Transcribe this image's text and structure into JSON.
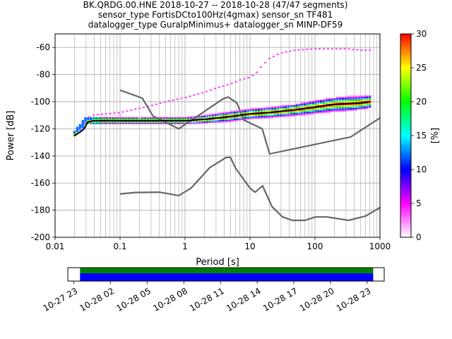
{
  "title": {
    "line1": "BK.QRDG.00.HNE   2018-10-27 -- 2018-10-28  (47/47 segments)",
    "line2": "sensor_type FortisDCto100Hz(4gmax) sensor_sn TF481",
    "line3": "datalogger_type GuralpMinimus+ datalogger_sn MINP-DF59"
  },
  "chart_data": {
    "type": "heatmap",
    "xlabel": "Period [s]",
    "ylabel": "Power [dB]",
    "x_scale": "log",
    "xlim": [
      0.01,
      1000
    ],
    "ylim": [
      -200,
      -50
    ],
    "x_ticks": [
      "0.01",
      "0.1",
      "1",
      "10",
      "100",
      "1000"
    ],
    "y_ticks": [
      "-200",
      "-180",
      "-160",
      "-140",
      "-120",
      "-100",
      "-80",
      "-60"
    ],
    "grid": true,
    "colorbar": {
      "label": "[%]",
      "range": [
        0,
        30
      ],
      "ticks": [
        "0",
        "5",
        "10",
        "15",
        "20",
        "25",
        "30"
      ],
      "colormap": "pqlx",
      "stops": [
        "#ffffff",
        "#ff00ff",
        "#0000ff",
        "#00ffff",
        "#00ff00",
        "#ffff00",
        "#ff0000"
      ]
    },
    "mode_curve": {
      "name": "mode",
      "color": "#000000",
      "points": [
        [
          0.02,
          -125
        ],
        [
          0.025,
          -122
        ],
        [
          0.028,
          -120
        ],
        [
          0.032,
          -115
        ],
        [
          0.04,
          -114
        ],
        [
          0.1,
          -114
        ],
        [
          0.5,
          -114
        ],
        [
          1,
          -114
        ],
        [
          2,
          -113
        ],
        [
          5,
          -111
        ],
        [
          10,
          -109
        ],
        [
          20,
          -108
        ],
        [
          50,
          -106
        ],
        [
          100,
          -104
        ],
        [
          200,
          -102
        ],
        [
          500,
          -101
        ],
        [
          700,
          -100
        ]
      ]
    },
    "heat_band": {
      "description_free": true,
      "core": [
        [
          0.02,
          -125,
          -122
        ],
        [
          0.03,
          -116,
          -112
        ],
        [
          0.1,
          -116,
          -112
        ],
        [
          1,
          -116,
          -112
        ],
        [
          5,
          -114,
          -108
        ],
        [
          10,
          -112,
          -106
        ],
        [
          50,
          -110,
          -103
        ],
        [
          100,
          -108,
          -100
        ],
        [
          300,
          -106,
          -97
        ],
        [
          700,
          -104,
          -96
        ]
      ],
      "upper_outliers": [
        [
          0.025,
          -120
        ],
        [
          0.035,
          -110
        ],
        [
          0.1,
          -108
        ],
        [
          0.3,
          -103
        ],
        [
          0.5,
          -100
        ],
        [
          1,
          -97
        ],
        [
          2,
          -93
        ],
        [
          3,
          -90
        ],
        [
          5,
          -87
        ],
        [
          7,
          -84
        ],
        [
          10,
          -82
        ],
        [
          13,
          -78
        ],
        [
          15,
          -74
        ],
        [
          20,
          -68
        ],
        [
          30,
          -64
        ],
        [
          50,
          -62
        ],
        [
          100,
          -61
        ],
        [
          200,
          -61
        ],
        [
          300,
          -61
        ],
        [
          500,
          -62
        ],
        [
          700,
          -62
        ]
      ],
      "scatter_hi_freq": [
        [
          0.1,
          -110
        ],
        [
          0.2,
          -112
        ],
        [
          0.5,
          -113
        ]
      ]
    },
    "nlnm": {
      "name": "NLNM",
      "color": "#666666",
      "points": [
        [
          0.1,
          -168
        ],
        [
          0.17,
          -167
        ],
        [
          0.4,
          -166.7
        ],
        [
          0.8,
          -169.2
        ],
        [
          1.24,
          -163.7
        ],
        [
          2.4,
          -148.6
        ],
        [
          4.3,
          -141.1
        ],
        [
          5,
          -141.1
        ],
        [
          6,
          -149
        ],
        [
          10,
          -163.8
        ],
        [
          12,
          -166.7
        ],
        [
          15.6,
          -162.1
        ],
        [
          21.9,
          -177.5
        ],
        [
          31.6,
          -185
        ],
        [
          45,
          -187.5
        ],
        [
          70,
          -187.5
        ],
        [
          101,
          -185
        ],
        [
          154,
          -185
        ],
        [
          328,
          -187.5
        ],
        [
          600,
          -184.4
        ],
        [
          1000,
          -178
        ]
      ]
    },
    "nhnm": {
      "name": "NHNM",
      "color": "#666666",
      "points": [
        [
          0.1,
          -91.5
        ],
        [
          0.22,
          -97.4
        ],
        [
          0.32,
          -110.5
        ],
        [
          0.8,
          -120
        ],
        [
          3.8,
          -98
        ],
        [
          4.6,
          -96.5
        ],
        [
          6.3,
          -101
        ],
        [
          8,
          -113.5
        ],
        [
          15.4,
          -120
        ],
        [
          20,
          -138.5
        ],
        [
          354.8,
          -126
        ],
        [
          1000,
          -112
        ]
      ]
    },
    "x_label_unit": "s"
  },
  "timeline": {
    "tick_labels": [
      "10-27 23",
      "10-28 02",
      "10-28 05",
      "10-28 08",
      "10-28 11",
      "10-28 14",
      "10-28 17",
      "10-28 20",
      "10-28 23"
    ],
    "tick_hours": [
      23,
      26,
      29,
      32,
      35,
      38,
      41,
      44,
      47
    ],
    "range_hours": [
      22.5,
      48.4
    ],
    "data_range_hours": [
      23.5,
      47.5
    ],
    "colors": {
      "coverage": "#008000",
      "segments": "#0000ff"
    }
  }
}
